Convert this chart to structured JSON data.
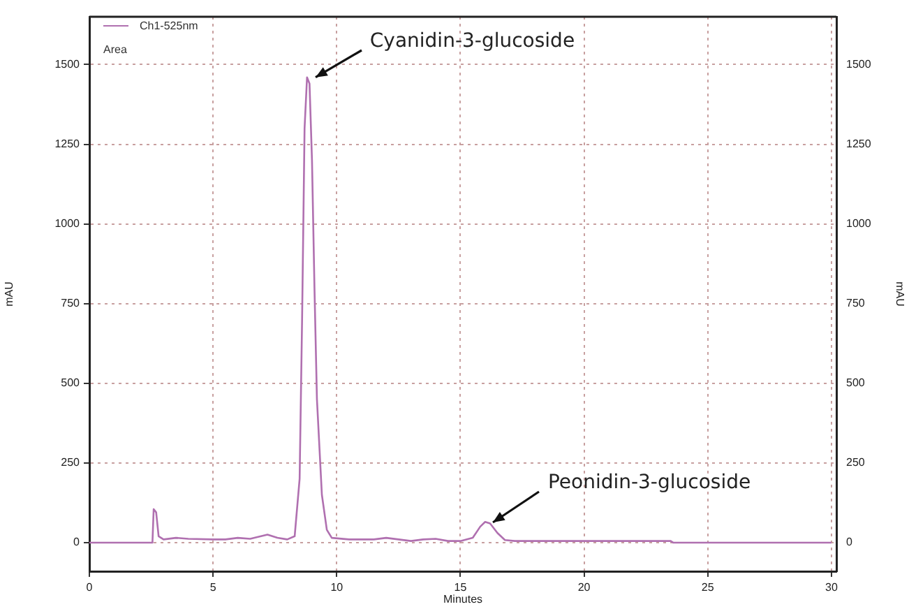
{
  "chart_data": {
    "type": "line",
    "xlabel": "Minutes",
    "ylabel": "mAU",
    "y2label": "mAU",
    "x": [
      0,
      2.5,
      2.55,
      2.6,
      2.7,
      2.8,
      3.0,
      3.5,
      4,
      5,
      5.5,
      6,
      6.5,
      7.2,
      7.6,
      8,
      8.3,
      8.5,
      8.6,
      8.7,
      8.8,
      8.9,
      9.0,
      9.1,
      9.2,
      9.4,
      9.6,
      9.8,
      10.5,
      11.5,
      12,
      13,
      13.5,
      14,
      14.5,
      15,
      15.5,
      15.8,
      16.0,
      16.2,
      16.5,
      16.8,
      17.2,
      20,
      23.5,
      23.6,
      30
    ],
    "series": [
      {
        "name": "Ch1-525nm",
        "color": "#b070b0",
        "values": [
          0,
          0,
          0,
          105,
          95,
          20,
          10,
          15,
          12,
          10,
          10,
          15,
          12,
          25,
          15,
          10,
          20,
          200,
          700,
          1300,
          1460,
          1440,
          1200,
          800,
          450,
          150,
          40,
          15,
          10,
          10,
          15,
          5,
          10,
          12,
          5,
          5,
          15,
          50,
          65,
          60,
          30,
          8,
          5,
          5,
          5,
          0,
          0
        ]
      }
    ],
    "xlim": [
      0,
      30.2
    ],
    "xticks": [
      0,
      5,
      10,
      15,
      20,
      25,
      30
    ],
    "ylim": [
      -90,
      1650
    ],
    "yticks": [
      0,
      250,
      500,
      750,
      1000,
      1250,
      1500
    ],
    "y2lim": [
      -90,
      1650
    ],
    "y2ticks": [
      0,
      250,
      500,
      750,
      1000,
      1250,
      1500
    ],
    "grid": true,
    "legend": "top left",
    "marker": "none",
    "line_style": "solid",
    "annotations": [
      {
        "text": "Cyanidin-3-glucoside",
        "x": 8.8,
        "y": 1460
      },
      {
        "text": "Peonidin-3-glucoside",
        "x": 16.0,
        "y": 65
      },
      "Area"
    ]
  }
}
